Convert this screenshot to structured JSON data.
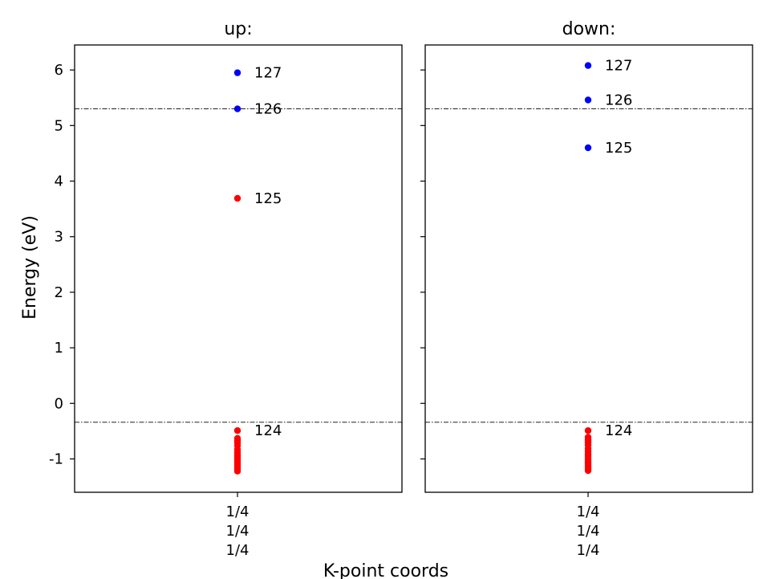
{
  "chart_data": {
    "type": "scatter",
    "ylabel": "Energy (eV)",
    "xlabel": "K-point coords",
    "ylim": [
      -1.6,
      6.45
    ],
    "yticks": [
      6,
      5,
      4,
      3,
      2,
      1,
      0,
      -1
    ],
    "ytick_labels": [
      "6",
      "5",
      "4",
      "3",
      "2",
      "1",
      "0",
      "-1"
    ],
    "xtick_label_lines": [
      "1/4",
      "1/4",
      "1/4"
    ],
    "grid": false,
    "colors": {
      "occupied": "#ff0000",
      "unoccupied": "#0000ff",
      "reference_line": "#000000"
    },
    "panels": [
      {
        "title": "up:",
        "reference_lines": [
          5.3,
          -0.34
        ],
        "points": [
          {
            "y": 5.95,
            "color": "unoccupied"
          },
          {
            "y": 5.3,
            "color": "unoccupied"
          },
          {
            "y": 3.69,
            "color": "occupied"
          },
          {
            "y": -0.49,
            "color": "occupied"
          },
          {
            "y": -0.63,
            "color": "occupied"
          },
          {
            "y": -0.67,
            "color": "occupied"
          },
          {
            "y": -0.71,
            "color": "occupied"
          },
          {
            "y": -0.76,
            "color": "occupied"
          },
          {
            "y": -0.83,
            "color": "occupied"
          },
          {
            "y": -0.88,
            "color": "occupied"
          },
          {
            "y": -0.93,
            "color": "occupied"
          },
          {
            "y": -0.97,
            "color": "occupied"
          },
          {
            "y": -1.01,
            "color": "occupied"
          },
          {
            "y": -1.04,
            "color": "occupied"
          },
          {
            "y": -1.07,
            "color": "occupied"
          },
          {
            "y": -1.1,
            "color": "occupied"
          },
          {
            "y": -1.14,
            "color": "occupied"
          },
          {
            "y": -1.18,
            "color": "occupied"
          },
          {
            "y": -1.22,
            "color": "occupied"
          }
        ],
        "band_labels": [
          {
            "text": "127",
            "y": 5.95
          },
          {
            "text": "126",
            "y": 5.3
          },
          {
            "text": "125",
            "y": 3.69
          },
          {
            "text": "124",
            "y": -0.49
          }
        ]
      },
      {
        "title": "down:",
        "reference_lines": [
          5.3,
          -0.34
        ],
        "points": [
          {
            "y": 6.08,
            "color": "unoccupied"
          },
          {
            "y": 5.46,
            "color": "unoccupied"
          },
          {
            "y": 4.6,
            "color": "unoccupied"
          },
          {
            "y": -0.49,
            "color": "occupied"
          },
          {
            "y": -0.61,
            "color": "occupied"
          },
          {
            "y": -0.66,
            "color": "occupied"
          },
          {
            "y": -0.7,
            "color": "occupied"
          },
          {
            "y": -0.75,
            "color": "occupied"
          },
          {
            "y": -0.81,
            "color": "occupied"
          },
          {
            "y": -0.86,
            "color": "occupied"
          },
          {
            "y": -0.91,
            "color": "occupied"
          },
          {
            "y": -0.95,
            "color": "occupied"
          },
          {
            "y": -0.99,
            "color": "occupied"
          },
          {
            "y": -1.02,
            "color": "occupied"
          },
          {
            "y": -1.06,
            "color": "occupied"
          },
          {
            "y": -1.09,
            "color": "occupied"
          },
          {
            "y": -1.13,
            "color": "occupied"
          },
          {
            "y": -1.17,
            "color": "occupied"
          },
          {
            "y": -1.21,
            "color": "occupied"
          }
        ],
        "band_labels": [
          {
            "text": "127",
            "y": 6.08
          },
          {
            "text": "126",
            "y": 5.46
          },
          {
            "text": "125",
            "y": 4.6
          },
          {
            "text": "124",
            "y": -0.49
          }
        ]
      }
    ]
  }
}
